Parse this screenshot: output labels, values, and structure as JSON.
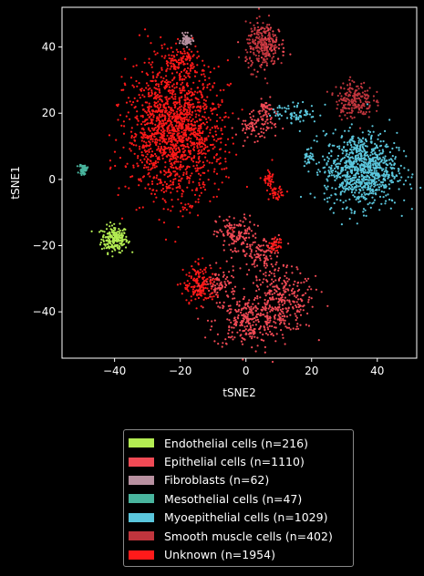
{
  "chart_data": {
    "type": "scatter",
    "xlabel": "tSNE2",
    "ylabel": "tSNE1",
    "xlim": [
      -56,
      52
    ],
    "ylim": [
      -54,
      52
    ],
    "xticks": [
      -40,
      -20,
      0,
      20,
      40
    ],
    "yticks": [
      -40,
      -20,
      0,
      20,
      40
    ],
    "xtick_labels": [
      "−40",
      "−20",
      "0",
      "20",
      "40"
    ],
    "ytick_labels": [
      "−40",
      "−20",
      "0",
      "20",
      "40"
    ],
    "legend_position": "below plot, centered",
    "series": [
      {
        "name": "Endothelial cells (n=216)",
        "color": "#b3ec52",
        "n": 216,
        "clusters": [
          {
            "cx": -40,
            "cy": -18,
            "sx": 2.0,
            "sy": 2.0,
            "w": 1.0
          }
        ]
      },
      {
        "name": "Epithelial cells (n=1110)",
        "color": "#f04a55",
        "n": 1110,
        "clusters": [
          {
            "cx": 11,
            "cy": -37,
            "sx": 5.0,
            "sy": 4.5,
            "w": 0.28
          },
          {
            "cx": 0,
            "cy": -43,
            "sx": 5.0,
            "sy": 4.0,
            "w": 0.22
          },
          {
            "cx": -3,
            "cy": -17,
            "sx": 3.0,
            "sy": 3.0,
            "w": 0.12
          },
          {
            "cx": 5,
            "cy": -23,
            "sx": 3.0,
            "sy": 3.0,
            "w": 0.1
          },
          {
            "cx": 7,
            "cy": 41,
            "sx": 2.5,
            "sy": 3.0,
            "w": 0.08
          },
          {
            "cx": 3,
            "cy": 16,
            "sx": 3.0,
            "sy": 2.0,
            "w": 0.08
          },
          {
            "cx": 6,
            "cy": 21,
            "sx": 1.2,
            "sy": 1.5,
            "w": 0.04
          },
          {
            "cx": -8,
            "cy": -32,
            "sx": 2.5,
            "sy": 2.5,
            "w": 0.08
          }
        ]
      },
      {
        "name": "Fibroblasts (n=62)",
        "color": "#b890a0",
        "n": 62,
        "clusters": [
          {
            "cx": -18,
            "cy": 42,
            "sx": 0.9,
            "sy": 0.9,
            "w": 1.0
          }
        ]
      },
      {
        "name": "Mesothelial cells (n=47)",
        "color": "#49b59e",
        "n": 47,
        "clusters": [
          {
            "cx": -49.5,
            "cy": 3,
            "sx": 0.6,
            "sy": 0.8,
            "w": 1.0
          }
        ]
      },
      {
        "name": "Myoepithelial cells (n=1029)",
        "color": "#5ac6dc",
        "n": 1029,
        "clusters": [
          {
            "cx": 35,
            "cy": 3,
            "sx": 5.5,
            "sy": 5.5,
            "w": 0.9
          },
          {
            "cx": 15,
            "cy": 20,
            "sx": 3.5,
            "sy": 1.5,
            "w": 0.07
          },
          {
            "cx": 19,
            "cy": 7,
            "sx": 0.8,
            "sy": 1.5,
            "w": 0.03
          }
        ]
      },
      {
        "name": "Smooth muscle cells (n=402)",
        "color": "#c0353d",
        "n": 402,
        "clusters": [
          {
            "cx": 33,
            "cy": 24,
            "sx": 2.8,
            "sy": 2.8,
            "w": 0.5
          },
          {
            "cx": 5,
            "cy": 40,
            "sx": 2.5,
            "sy": 3.5,
            "w": 0.5
          }
        ]
      },
      {
        "name": "Unknown (n=1954)",
        "color": "#ff1a1a",
        "n": 1954,
        "clusters": [
          {
            "cx": -22,
            "cy": 15,
            "sx": 7.0,
            "sy": 10.0,
            "w": 0.8
          },
          {
            "cx": -14,
            "cy": -32,
            "sx": 2.5,
            "sy": 3.0,
            "w": 0.08
          },
          {
            "cx": -20,
            "cy": 36,
            "sx": 2.5,
            "sy": 2.0,
            "w": 0.05
          },
          {
            "cx": 9,
            "cy": -20,
            "sx": 1.0,
            "sy": 1.0,
            "w": 0.02
          },
          {
            "cx": 9,
            "cy": -4,
            "sx": 1.0,
            "sy": 1.0,
            "w": 0.02
          },
          {
            "cx": 7,
            "cy": 0,
            "sx": 1.0,
            "sy": 1.0,
            "w": 0.02
          },
          {
            "cx": -10,
            "cy": 6,
            "sx": 3.0,
            "sy": 3.0,
            "w": 0.01
          }
        ]
      }
    ]
  }
}
